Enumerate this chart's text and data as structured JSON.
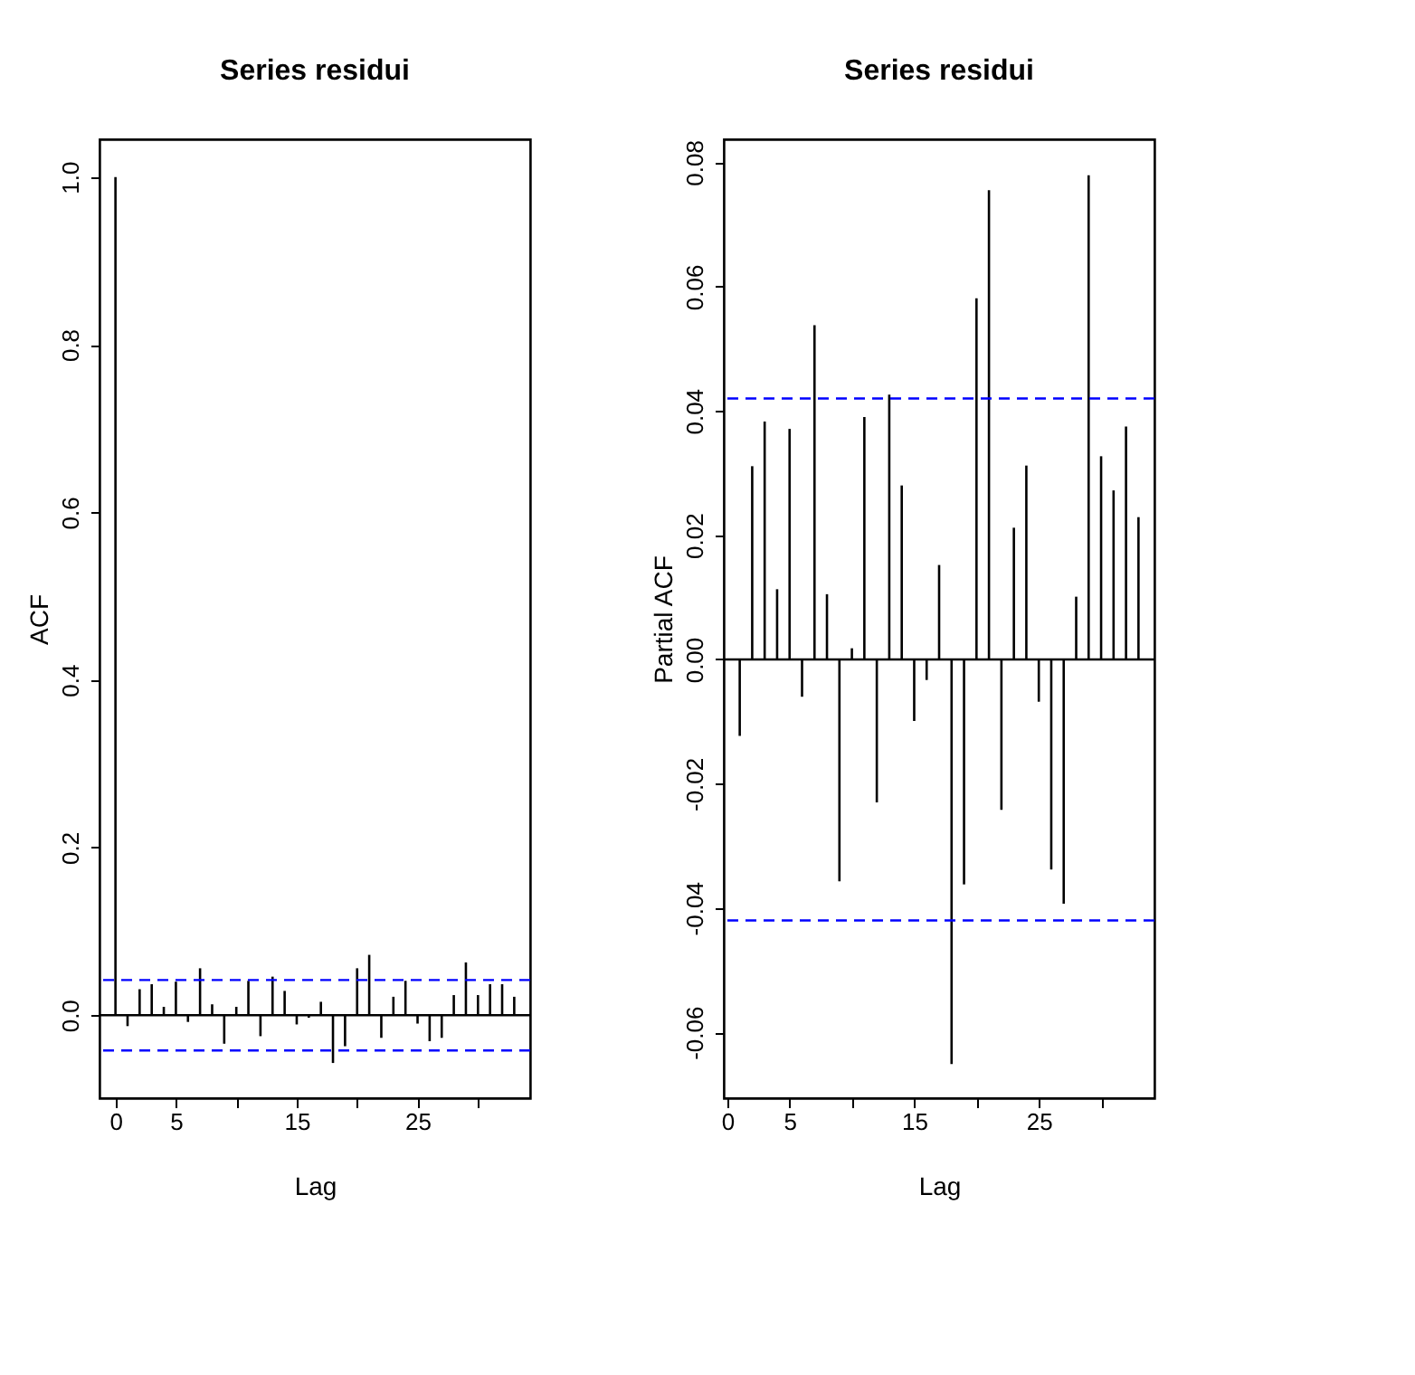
{
  "chart_data": [
    {
      "type": "bar",
      "title": "Series residui",
      "xlabel": "Lag",
      "ylabel": "ACF",
      "x": [
        0,
        1,
        2,
        3,
        4,
        5,
        6,
        7,
        8,
        9,
        10,
        11,
        12,
        13,
        14,
        15,
        16,
        17,
        18,
        19,
        20,
        21,
        22,
        23,
        24,
        25,
        26,
        27,
        28,
        29,
        30,
        31,
        32,
        33
      ],
      "series": [
        {
          "color": "#000000",
          "values": [
            1,
            -0.013,
            0.031,
            0.037,
            0.01,
            0.04,
            -0.008,
            0.056,
            0.013,
            -0.034,
            0.01,
            0.041,
            -0.025,
            0.046,
            0.029,
            -0.011,
            -0.003,
            0.016,
            -0.057,
            -0.037,
            0.056,
            0.072,
            -0.027,
            0.022,
            0.041,
            -0.01,
            -0.031,
            -0.027,
            0.024,
            0.063,
            0.024,
            0.037,
            0.037,
            0.022
          ]
        }
      ],
      "xlim": [
        -1.32,
        34.32
      ],
      "xticks": [
        0,
        5,
        {
          "value": 10,
          "label": null
        },
        15,
        {
          "value": 20,
          "label": null
        },
        25,
        {
          "value": 30,
          "label": null
        }
      ],
      "ylim": [
        -0.099,
        1.045
      ],
      "yticks": [
        {
          "value": 0,
          "label": "0.0"
        },
        0.2,
        0.4,
        0.6,
        0.8,
        {
          "value": 1,
          "label": "1.0"
        }
      ],
      "ref_lines": [
        {
          "axis": "y",
          "value": 0,
          "color": "#000000",
          "line_style": "solid"
        },
        {
          "axis": "y",
          "value": 0.042,
          "color": "#0000ff",
          "line_style": "dashed"
        },
        {
          "axis": "y",
          "value": -0.042,
          "color": "#0000ff",
          "line_style": "dashed"
        }
      ],
      "grid": false
    },
    {
      "type": "bar",
      "title": "Series residui",
      "xlabel": "Lag",
      "ylabel": "Partial ACF",
      "x": [
        1,
        2,
        3,
        4,
        5,
        6,
        7,
        8,
        9,
        10,
        11,
        12,
        13,
        14,
        15,
        16,
        17,
        18,
        19,
        20,
        21,
        22,
        23,
        24,
        25,
        26,
        27,
        28,
        29,
        30,
        31,
        32,
        33
      ],
      "series": [
        {
          "color": "#000000",
          "values": [
            -0.0123,
            0.0311,
            0.0383,
            0.0113,
            0.0371,
            -0.006,
            0.0538,
            0.0105,
            -0.0357,
            0.0018,
            0.039,
            -0.023,
            0.0426,
            0.028,
            -0.0099,
            -0.0033,
            0.0152,
            -0.0651,
            -0.0362,
            0.0581,
            0.0755,
            -0.0242,
            0.0212,
            0.0312,
            -0.0068,
            -0.0338,
            -0.0393,
            0.0101,
            0.0779,
            0.0327,
            0.0272,
            0.0375,
            0.0229
          ]
        }
      ],
      "xlim": [
        -0.28,
        34.28
      ],
      "xticks": [
        0,
        5,
        {
          "value": 10,
          "label": null
        },
        15,
        {
          "value": 20,
          "label": null
        },
        25,
        {
          "value": 30,
          "label": null
        }
      ],
      "ylim": [
        -0.0706,
        0.0837
      ],
      "yticks": [
        -0.06,
        -0.04,
        -0.02,
        {
          "value": 0,
          "label": "0.00"
        },
        0.02,
        0.04,
        0.06,
        0.08
      ],
      "ref_lines": [
        {
          "axis": "y",
          "value": 0,
          "color": "#000000",
          "line_style": "solid"
        },
        {
          "axis": "y",
          "value": 0.042,
          "color": "#0000ff",
          "line_style": "dashed"
        },
        {
          "axis": "y",
          "value": -0.042,
          "color": "#0000ff",
          "line_style": "dashed"
        }
      ],
      "grid": false
    }
  ]
}
